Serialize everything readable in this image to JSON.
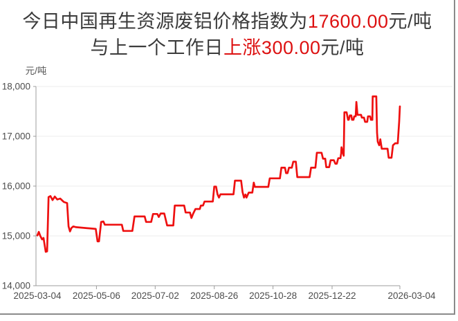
{
  "page": {
    "background": "#ffffff",
    "border_color": "#8a8a8a"
  },
  "headline": {
    "text_color": "#3b3b3b",
    "highlight_color": "#dd1111",
    "line1_prefix": "今日中国再生资源废铝价格指数为",
    "line1_highlight": "17600.00",
    "line1_suffix": "元/吨",
    "line2_prefix": "与上一个工作日",
    "line2_highlight": "上涨300.00",
    "line2_suffix": "元/吨"
  },
  "chart_data": {
    "type": "line",
    "title": "",
    "xlabel": "",
    "ylabel": "元/吨",
    "ylim": [
      14000,
      18000
    ],
    "grid": true,
    "legend": "none",
    "line_color": "#ee1010",
    "axis_color": "#9c9c9c",
    "grid_color": "#ececec",
    "tick_label_color": "#4d4d4d",
    "latest_value": 17600.0,
    "change_from_previous": 300.0,
    "y_ticks": [
      14000,
      15000,
      16000,
      17000,
      18000
    ],
    "y_tick_labels": [
      "14,000",
      "15,000",
      "16,000",
      "17,000",
      "18,000"
    ],
    "x_tick_labels": [
      "2025-03-04",
      "2025-05-06",
      "2025-07-02",
      "2025-08-26",
      "2025-10-28",
      "2025-12-22",
      "2026-03-04"
    ],
    "x_tick_positions": [
      0,
      0.163,
      0.325,
      0.488,
      0.65,
      0.813,
      1
    ],
    "points": [
      [
        0,
        15010
      ],
      [
        0.004,
        15080
      ],
      [
        0.008,
        15000
      ],
      [
        0.013,
        14930
      ],
      [
        0.017,
        14960
      ],
      [
        0.023,
        14680
      ],
      [
        0.027,
        14690
      ],
      [
        0.031,
        15780
      ],
      [
        0.036,
        15800
      ],
      [
        0.042,
        15720
      ],
      [
        0.048,
        15790
      ],
      [
        0.055,
        15730
      ],
      [
        0.063,
        15750
      ],
      [
        0.073,
        15680
      ],
      [
        0.082,
        15660
      ],
      [
        0.086,
        15190
      ],
      [
        0.09,
        15090
      ],
      [
        0.094,
        15160
      ],
      [
        0.099,
        15190
      ],
      [
        0.107,
        15175
      ],
      [
        0.161,
        15140
      ],
      [
        0.166,
        14890
      ],
      [
        0.17,
        14890
      ],
      [
        0.176,
        15280
      ],
      [
        0.182,
        15290
      ],
      [
        0.186,
        15225
      ],
      [
        0.233,
        15225
      ],
      [
        0.237,
        15100
      ],
      [
        0.262,
        15100
      ],
      [
        0.268,
        15390
      ],
      [
        0.296,
        15390
      ],
      [
        0.3,
        15280
      ],
      [
        0.314,
        15280
      ],
      [
        0.319,
        15440
      ],
      [
        0.331,
        15440
      ],
      [
        0.335,
        15380
      ],
      [
        0.34,
        15450
      ],
      [
        0.35,
        15450
      ],
      [
        0.354,
        15330
      ],
      [
        0.358,
        15210
      ],
      [
        0.375,
        15210
      ],
      [
        0.379,
        15610
      ],
      [
        0.405,
        15610
      ],
      [
        0.409,
        15470
      ],
      [
        0.421,
        15470
      ],
      [
        0.425,
        15360
      ],
      [
        0.43,
        15450
      ],
      [
        0.436,
        15540
      ],
      [
        0.448,
        15540
      ],
      [
        0.451,
        15610
      ],
      [
        0.457,
        15610
      ],
      [
        0.461,
        15690
      ],
      [
        0.484,
        15690
      ],
      [
        0.488,
        15990
      ],
      [
        0.493,
        15990
      ],
      [
        0.497,
        15835
      ],
      [
        0.501,
        15770
      ],
      [
        0.505,
        15835
      ],
      [
        0.541,
        15835
      ],
      [
        0.545,
        16110
      ],
      [
        0.562,
        16110
      ],
      [
        0.566,
        15880
      ],
      [
        0.57,
        15770
      ],
      [
        0.574,
        15830
      ],
      [
        0.577,
        15770
      ],
      [
        0.583,
        15870
      ],
      [
        0.593,
        15870
      ],
      [
        0.597,
        16070
      ],
      [
        0.6,
        15985
      ],
      [
        0.637,
        15985
      ],
      [
        0.641,
        16155
      ],
      [
        0.669,
        16155
      ],
      [
        0.673,
        16370
      ],
      [
        0.683,
        16370
      ],
      [
        0.686,
        16260
      ],
      [
        0.69,
        16260
      ],
      [
        0.694,
        16370
      ],
      [
        0.702,
        16370
      ],
      [
        0.706,
        16490
      ],
      [
        0.713,
        16490
      ],
      [
        0.717,
        16180
      ],
      [
        0.751,
        16180
      ],
      [
        0.755,
        16370
      ],
      [
        0.767,
        16370
      ],
      [
        0.771,
        16670
      ],
      [
        0.784,
        16670
      ],
      [
        0.788,
        16550
      ],
      [
        0.794,
        16550
      ],
      [
        0.797,
        16380
      ],
      [
        0.805,
        16380
      ],
      [
        0.809,
        16520
      ],
      [
        0.818,
        16520
      ],
      [
        0.822,
        16450
      ],
      [
        0.826,
        16450
      ],
      [
        0.83,
        16560
      ],
      [
        0.836,
        16560
      ],
      [
        0.838,
        16660
      ],
      [
        0.839,
        16780
      ],
      [
        0.843,
        16660
      ],
      [
        0.845,
        16610
      ],
      [
        0.847,
        17480
      ],
      [
        0.853,
        17480
      ],
      [
        0.857,
        17330
      ],
      [
        0.859,
        17330
      ],
      [
        0.862,
        17420
      ],
      [
        0.866,
        17420
      ],
      [
        0.868,
        17330
      ],
      [
        0.872,
        17330
      ],
      [
        0.874,
        17400
      ],
      [
        0.878,
        17400
      ],
      [
        0.88,
        17690
      ],
      [
        0.883,
        17430
      ],
      [
        0.893,
        17430
      ],
      [
        0.895,
        17375
      ],
      [
        0.901,
        17375
      ],
      [
        0.904,
        17290
      ],
      [
        0.91,
        17290
      ],
      [
        0.912,
        17400
      ],
      [
        0.918,
        17400
      ],
      [
        0.92,
        17330
      ],
      [
        0.924,
        17330
      ],
      [
        0.925,
        17800
      ],
      [
        0.935,
        17800
      ],
      [
        0.937,
        17070
      ],
      [
        0.939,
        16890
      ],
      [
        0.943,
        16820
      ],
      [
        0.945,
        16890
      ],
      [
        0.946,
        16940
      ],
      [
        0.95,
        16750
      ],
      [
        0.966,
        16750
      ],
      [
        0.969,
        16570
      ],
      [
        0.977,
        16570
      ],
      [
        0.981,
        16820
      ],
      [
        0.987,
        16860
      ],
      [
        0.994,
        16860
      ],
      [
        0.998,
        17300
      ],
      [
        1,
        17600
      ]
    ]
  }
}
